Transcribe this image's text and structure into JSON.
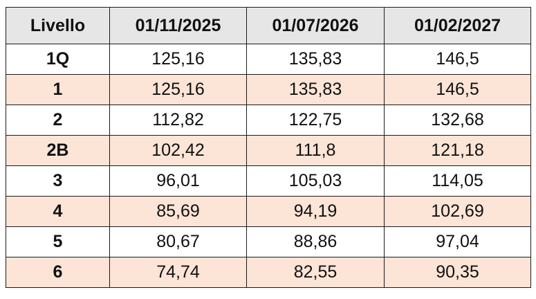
{
  "table": {
    "header": [
      "Livello",
      "01/11/2025",
      "01/07/2026",
      "01/02/2027"
    ],
    "rows": [
      [
        "1Q",
        "125,16",
        "135,83",
        "146,5"
      ],
      [
        "1",
        "125,16",
        "135,83",
        "146,5"
      ],
      [
        "2",
        "112,82",
        "122,75",
        "132,68"
      ],
      [
        "2B",
        "102,42",
        "111,8",
        "121,18"
      ],
      [
        "3",
        "96,01",
        "105,03",
        "114,05"
      ],
      [
        "4",
        "85,69",
        "94,19",
        "102,69"
      ],
      [
        "5",
        "80,67",
        "88,86",
        "97,04"
      ],
      [
        "6",
        "74,74",
        "82,55",
        "90,35"
      ]
    ]
  }
}
